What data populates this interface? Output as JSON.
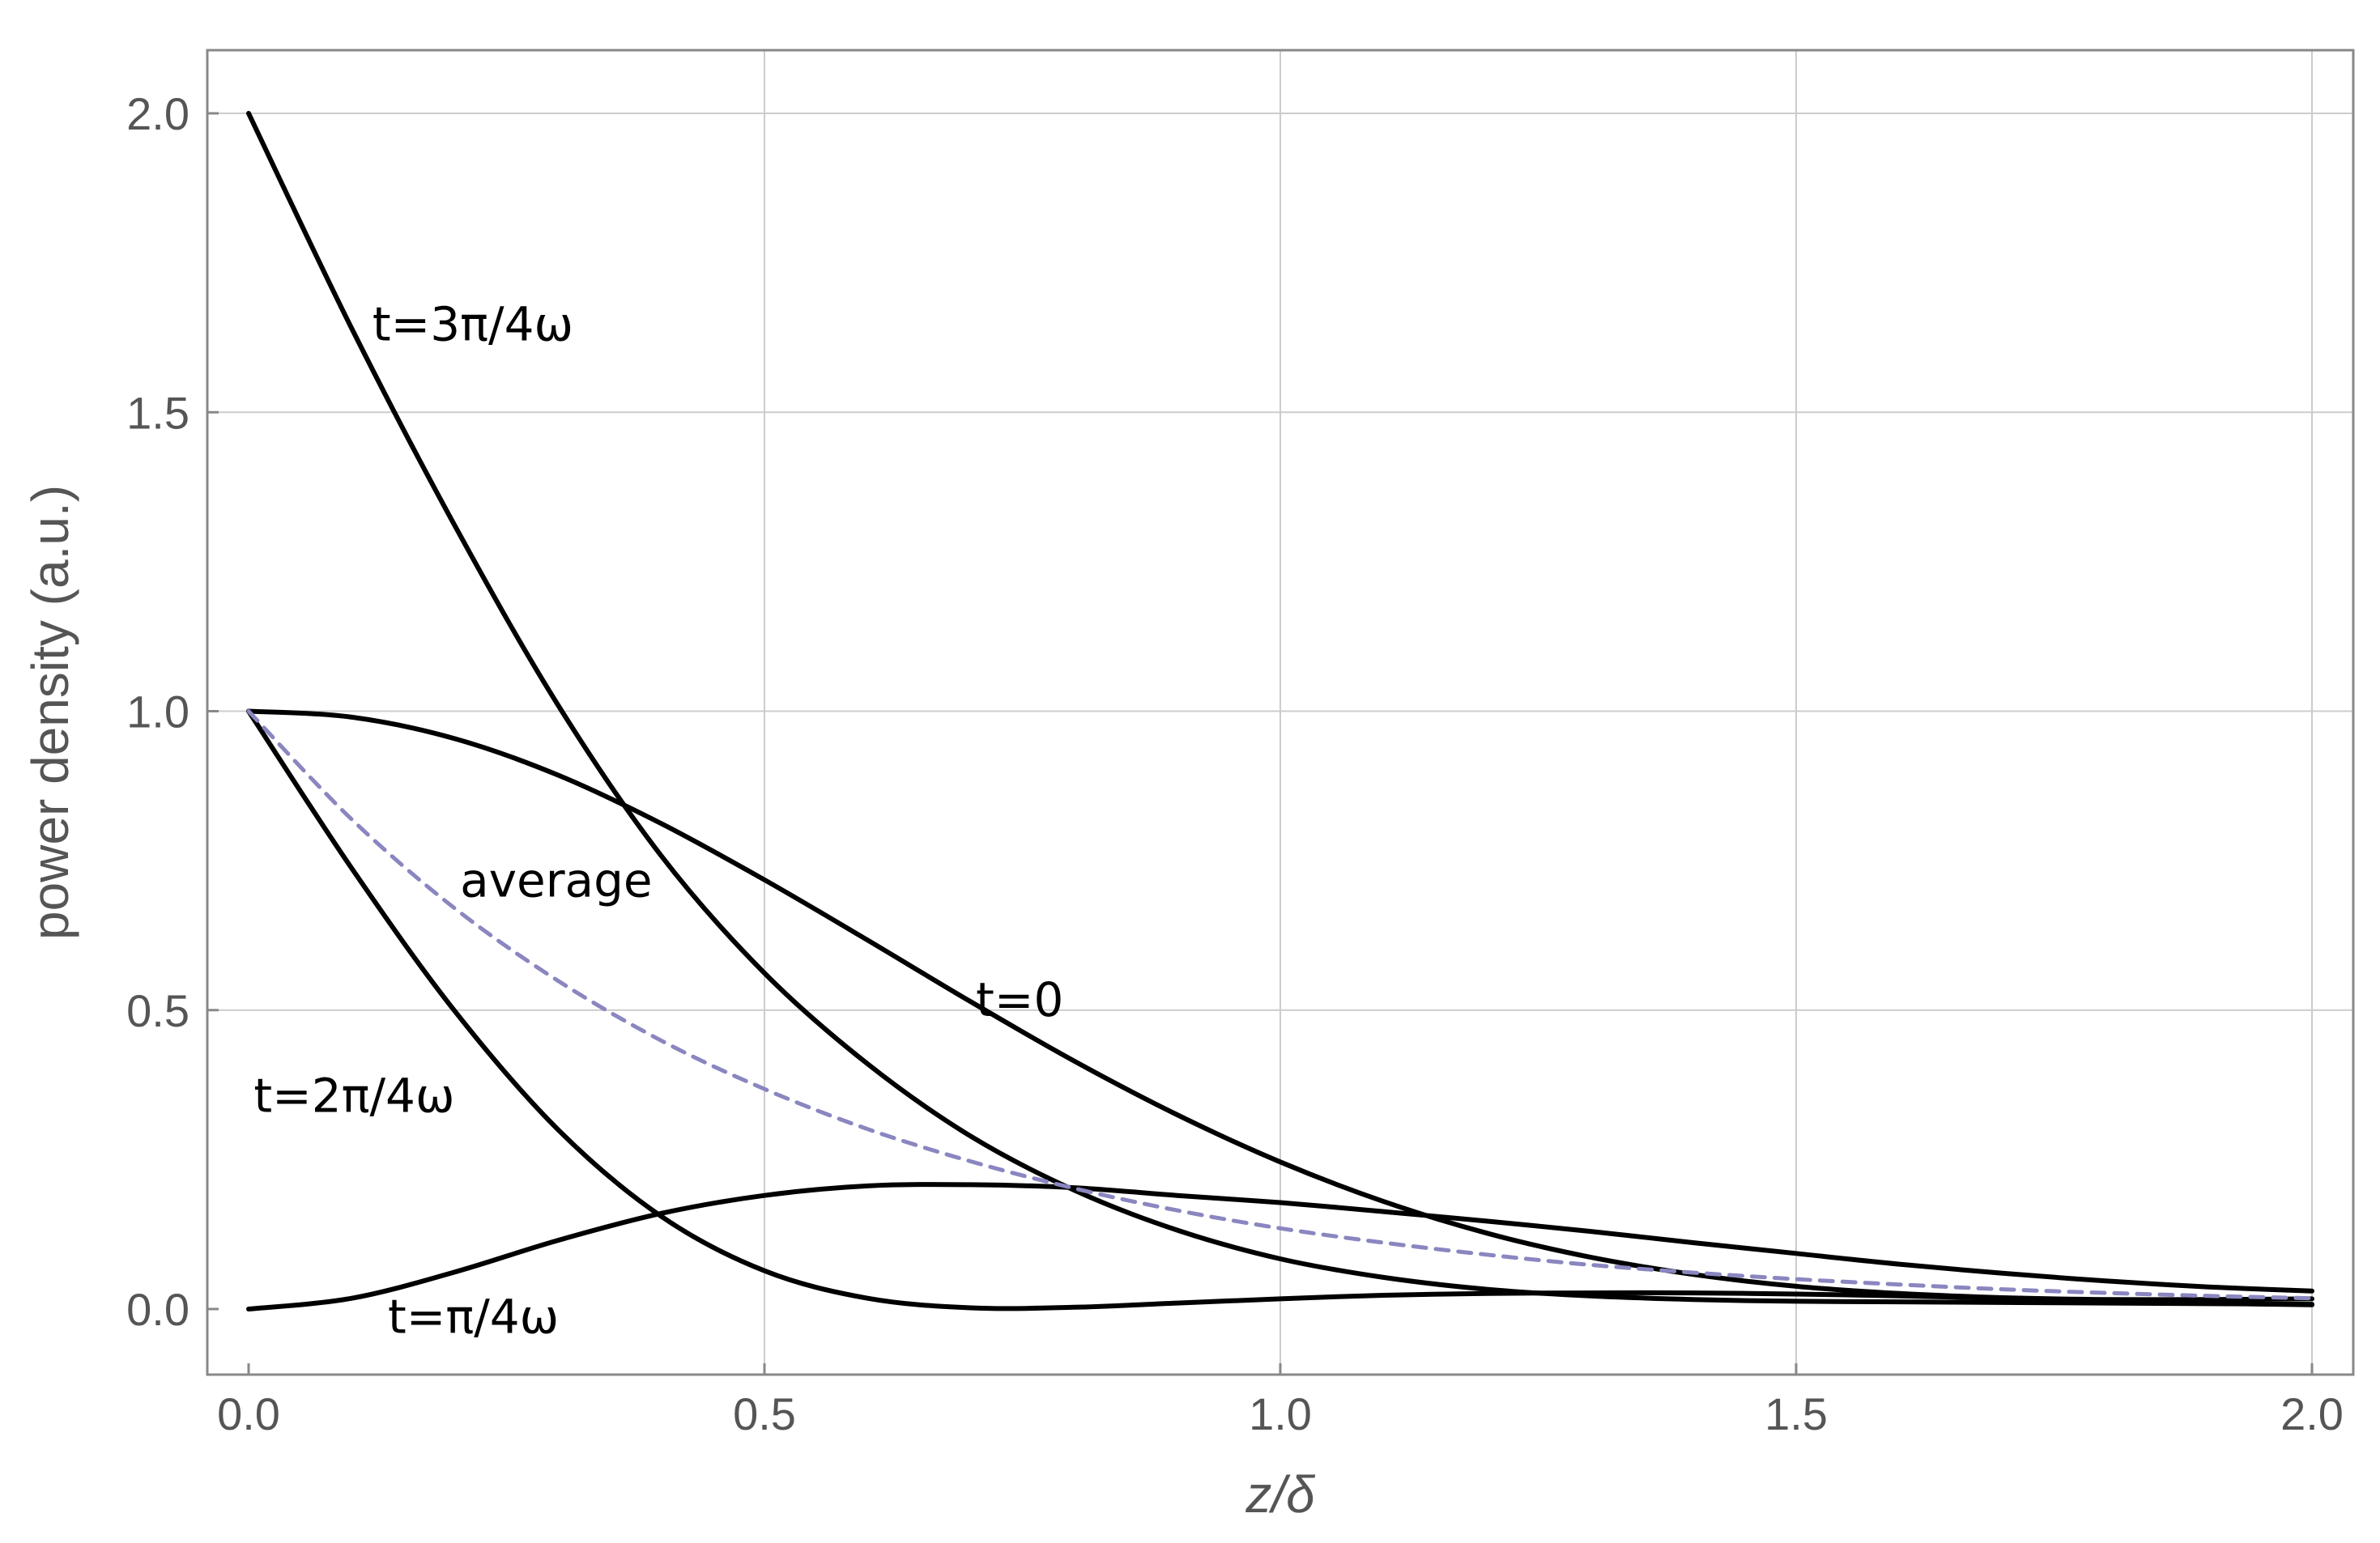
{
  "chart_data": {
    "type": "line",
    "xlabel": "z/δ",
    "ylabel": "power density (a.u.)",
    "xlim": [
      0,
      2
    ],
    "ylim": [
      -0.1,
      2.1
    ],
    "xticks": [
      "0.0",
      "0.5",
      "1.0",
      "1.5",
      "2.0"
    ],
    "yticks": [
      "0.0",
      "0.5",
      "1.0",
      "1.5",
      "2.0"
    ],
    "xtick_values": [
      0,
      0.5,
      1.0,
      1.5,
      2.0
    ],
    "ytick_values": [
      0,
      0.5,
      1.0,
      1.5,
      2.0
    ],
    "grid": true,
    "colors": {
      "curve": "#000000",
      "average": "#8a86c0",
      "grid": "#cccccc",
      "frame": "#888888"
    },
    "series": [
      {
        "id": "t0",
        "x": [
          0,
          0.1,
          0.2,
          0.3,
          0.4,
          0.5,
          0.6,
          0.7,
          0.8,
          0.9,
          1.0,
          1.1,
          1.2,
          1.3,
          1.4,
          1.5,
          1.6,
          1.7,
          1.8,
          1.9,
          2.0
        ],
        "y": [
          1.0,
          0.99,
          0.954,
          0.893,
          0.812,
          0.718,
          0.617,
          0.514,
          0.415,
          0.325,
          0.246,
          0.18,
          0.127,
          0.087,
          0.058,
          0.038,
          0.026,
          0.019,
          0.016,
          0.016,
          0.017
        ]
      },
      {
        "id": "t1",
        "x": [
          0,
          0.1,
          0.2,
          0.3,
          0.4,
          0.5,
          0.6,
          0.7,
          0.8,
          0.9,
          1.0,
          1.1,
          1.2,
          1.3,
          1.4,
          1.5,
          1.6,
          1.7,
          1.8,
          1.9,
          2.0
        ],
        "y": [
          0.0,
          0.018,
          0.062,
          0.115,
          0.16,
          0.19,
          0.206,
          0.208,
          0.203,
          0.19,
          0.178,
          0.163,
          0.147,
          0.13,
          0.111,
          0.093,
          0.075,
          0.06,
          0.047,
          0.037,
          0.03
        ]
      },
      {
        "id": "t2",
        "x": [
          0,
          0.1,
          0.2,
          0.3,
          0.4,
          0.5,
          0.6,
          0.7,
          0.8,
          0.9,
          1.0,
          1.1,
          1.2,
          1.3,
          1.4,
          1.5,
          1.6,
          1.7,
          1.8,
          1.9,
          2.0
        ],
        "y": [
          1.0,
          0.737,
          0.498,
          0.3,
          0.155,
          0.064,
          0.018,
          0.002,
          0.003,
          0.01,
          0.017,
          0.023,
          0.026,
          0.027,
          0.027,
          0.025,
          0.022,
          0.018,
          0.014,
          0.01,
          0.007
        ]
      },
      {
        "id": "t3",
        "x": [
          0,
          0.1,
          0.2,
          0.3,
          0.4,
          0.5,
          0.6,
          0.7,
          0.8,
          0.9,
          1.0,
          1.1,
          1.2,
          1.3,
          1.4,
          1.5,
          1.6,
          1.7,
          1.8,
          1.9,
          2.0
        ],
        "y": [
          2.0,
          1.64,
          1.31,
          1.01,
          0.758,
          0.562,
          0.41,
          0.289,
          0.199,
          0.132,
          0.084,
          0.053,
          0.033,
          0.022,
          0.016,
          0.013,
          0.012,
          0.011,
          0.01,
          0.009,
          0.008
        ]
      },
      {
        "id": "average",
        "dashed": true,
        "x": [
          0,
          0.1,
          0.2,
          0.3,
          0.4,
          0.5,
          0.6,
          0.7,
          0.8,
          0.9,
          1.0,
          1.1,
          1.2,
          1.3,
          1.4,
          1.5,
          1.6,
          1.7,
          1.8,
          1.9,
          2.0
        ],
        "y": [
          1.0,
          0.819,
          0.67,
          0.549,
          0.449,
          0.368,
          0.301,
          0.247,
          0.202,
          0.165,
          0.135,
          0.111,
          0.091,
          0.074,
          0.061,
          0.05,
          0.041,
          0.033,
          0.027,
          0.022,
          0.018
        ]
      }
    ],
    "annotations": [
      {
        "text": "t=3π/4ω",
        "x": 0.12,
        "y": 1.62
      },
      {
        "text": "average",
        "x": 0.205,
        "y": 0.69
      },
      {
        "text": "t=0",
        "x": 0.705,
        "y": 0.49
      },
      {
        "text": "t=2π/4ω",
        "x": 0.005,
        "y": 0.33
      },
      {
        "text": "t=π/4ω",
        "x": 0.135,
        "y": -0.04
      }
    ]
  }
}
